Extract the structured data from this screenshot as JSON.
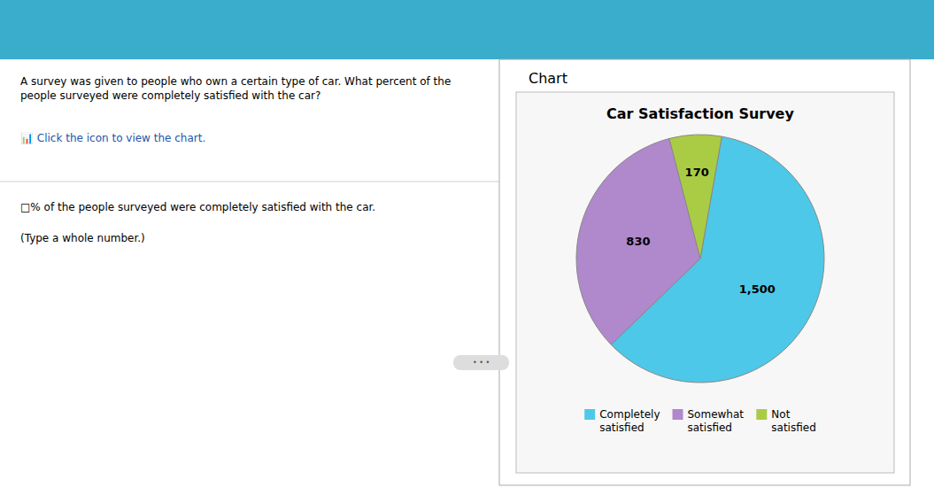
{
  "chart_data": {
    "type": "pie",
    "title": "Car Satisfaction Survey",
    "categories": [
      "Completely\nsatisfied",
      "Somewhat\nsatisfied",
      "Not\nsatisfied"
    ],
    "values": [
      1500,
      830,
      170
    ],
    "value_labels": [
      "1,500",
      "830",
      "170"
    ],
    "colors": [
      "#4DC8E8",
      "#B088CC",
      "#AACC44"
    ],
    "data_labels": true,
    "legend": "bottom"
  },
  "header_color": "#3AACCC",
  "panel_label": "Chart",
  "question_text": "A survey was given to people who own a certain type of car. What percent of the people surveyed were completely satisfied with the car?",
  "click_text": "📊 Click the icon to view the chart.",
  "answer_text": "□% of the people surveyed were completely satisfied with the car.",
  "answer_hint": "(Type a whole number.)",
  "button_text": "• • •"
}
